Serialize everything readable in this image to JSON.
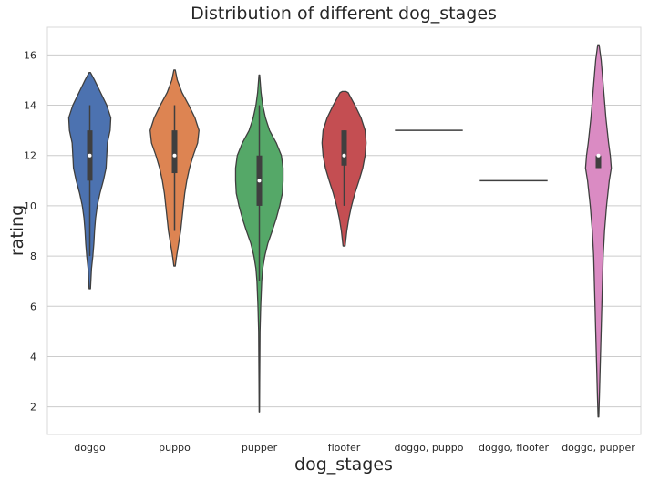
{
  "chart_data": {
    "type": "violin",
    "title": "Distribution of different dog_stages",
    "xlabel": "dog_stages",
    "ylabel": "rating",
    "ylim": [
      0.9,
      17.1
    ],
    "yticks": [
      2,
      4,
      6,
      8,
      10,
      12,
      14,
      16
    ],
    "grid": "horizontal",
    "categories": [
      "doggo",
      "puppo",
      "pupper",
      "floofer",
      "doggo, puppo",
      "doggo, floofer",
      "doggo, pupper"
    ],
    "colors": [
      "#4c72b0",
      "#dd8452",
      "#55a868",
      "#c44e52",
      "#8172b3",
      "#937860",
      "#da8bc3"
    ],
    "violins": [
      {
        "category": "doggo",
        "min": 8,
        "q1": 11,
        "median": 12,
        "q3": 13,
        "max": 14,
        "profile": [
          [
            6.7,
            0.02
          ],
          [
            7.5,
            0.05
          ],
          [
            8.0,
            0.09
          ],
          [
            8.5,
            0.12
          ],
          [
            9.0,
            0.14
          ],
          [
            9.5,
            0.17
          ],
          [
            10.0,
            0.22
          ],
          [
            10.5,
            0.3
          ],
          [
            11.0,
            0.4
          ],
          [
            11.5,
            0.48
          ],
          [
            12.0,
            0.5
          ],
          [
            12.5,
            0.52
          ],
          [
            13.0,
            0.6
          ],
          [
            13.5,
            0.62
          ],
          [
            14.0,
            0.5
          ],
          [
            14.5,
            0.32
          ],
          [
            15.0,
            0.14
          ],
          [
            15.3,
            0.02
          ]
        ]
      },
      {
        "category": "puppo",
        "min": 9,
        "q1": 11.3,
        "median": 12,
        "q3": 13,
        "max": 14,
        "profile": [
          [
            7.6,
            0.02
          ],
          [
            8.0,
            0.06
          ],
          [
            8.5,
            0.12
          ],
          [
            9.0,
            0.18
          ],
          [
            9.5,
            0.22
          ],
          [
            10.0,
            0.26
          ],
          [
            10.5,
            0.3
          ],
          [
            11.0,
            0.36
          ],
          [
            11.5,
            0.44
          ],
          [
            12.0,
            0.55
          ],
          [
            12.5,
            0.68
          ],
          [
            13.0,
            0.72
          ],
          [
            13.5,
            0.6
          ],
          [
            14.0,
            0.42
          ],
          [
            14.5,
            0.22
          ],
          [
            15.0,
            0.08
          ],
          [
            15.4,
            0.02
          ]
        ]
      },
      {
        "category": "pupper",
        "min": 7,
        "q1": 10,
        "median": 11,
        "q3": 12,
        "max": 14,
        "profile": [
          [
            1.8,
            0.005
          ],
          [
            3.0,
            0.01
          ],
          [
            4.0,
            0.015
          ],
          [
            5.0,
            0.02
          ],
          [
            6.0,
            0.04
          ],
          [
            7.0,
            0.07
          ],
          [
            7.5,
            0.1
          ],
          [
            8.0,
            0.16
          ],
          [
            8.5,
            0.25
          ],
          [
            9.0,
            0.38
          ],
          [
            9.5,
            0.5
          ],
          [
            10.0,
            0.6
          ],
          [
            10.5,
            0.68
          ],
          [
            11.0,
            0.7
          ],
          [
            11.5,
            0.7
          ],
          [
            12.0,
            0.65
          ],
          [
            12.5,
            0.5
          ],
          [
            13.0,
            0.3
          ],
          [
            13.5,
            0.18
          ],
          [
            14.0,
            0.1
          ],
          [
            14.5,
            0.05
          ],
          [
            15.2,
            0.01
          ]
        ]
      },
      {
        "category": "floofer",
        "min": 10,
        "q1": 11.6,
        "median": 12,
        "q3": 13,
        "max": 13,
        "profile": [
          [
            8.4,
            0.03
          ],
          [
            9.0,
            0.08
          ],
          [
            9.5,
            0.14
          ],
          [
            10.0,
            0.22
          ],
          [
            10.5,
            0.32
          ],
          [
            11.0,
            0.44
          ],
          [
            11.5,
            0.55
          ],
          [
            12.0,
            0.62
          ],
          [
            12.5,
            0.65
          ],
          [
            13.0,
            0.62
          ],
          [
            13.5,
            0.5
          ],
          [
            14.0,
            0.32
          ],
          [
            14.3,
            0.2
          ],
          [
            14.5,
            0.12
          ],
          [
            14.55,
            0.05
          ]
        ]
      },
      {
        "category": "doggo, puppo",
        "value": 13
      },
      {
        "category": "doggo, floofer",
        "value": 11
      },
      {
        "category": "doggo, pupper",
        "min": 11.5,
        "q1": 11.5,
        "median": 12,
        "q3": 12,
        "max": 12,
        "profile": [
          [
            1.6,
            0.01
          ],
          [
            2.5,
            0.03
          ],
          [
            3.5,
            0.05
          ],
          [
            5.0,
            0.08
          ],
          [
            6.5,
            0.11
          ],
          [
            8.0,
            0.14
          ],
          [
            9.0,
            0.18
          ],
          [
            10.0,
            0.24
          ],
          [
            11.0,
            0.32
          ],
          [
            11.5,
            0.38
          ],
          [
            12.0,
            0.35
          ],
          [
            12.5,
            0.3
          ],
          [
            13.0,
            0.26
          ],
          [
            13.5,
            0.22
          ],
          [
            14.0,
            0.19
          ],
          [
            15.0,
            0.13
          ],
          [
            15.8,
            0.08
          ],
          [
            16.4,
            0.02
          ]
        ]
      }
    ]
  }
}
